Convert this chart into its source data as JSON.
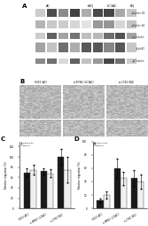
{
  "panel_c": {
    "title": "C",
    "groups": [
      "H353 (AC)",
      "si-MFN3 (LC3AC)",
      "si-1762 (BQ)"
    ],
    "black_vals": [
      70,
      72,
      100
    ],
    "white_vals": [
      75,
      68,
      75
    ],
    "black_err": [
      8,
      6,
      15
    ],
    "white_err": [
      10,
      8,
      25
    ],
    "black_label": "siglucin B3",
    "white_label": "si(winel)",
    "ylabel": "Relative migration (%)",
    "ylim": [
      0,
      130
    ]
  },
  "panel_d": {
    "title": "D",
    "groups": [
      "H353 (AC)",
      "si-MFN3 (LC3AC)",
      "si-1762 (BQ)"
    ],
    "black_vals": [
      12,
      60,
      45
    ],
    "white_vals": [
      20,
      45,
      40
    ],
    "black_err": [
      3,
      15,
      12
    ],
    "white_err": [
      5,
      10,
      10
    ],
    "black_label": "siGlukin B3",
    "white_label": "si(winel)",
    "ylabel": "Relative migration (%)",
    "ylim": [
      0,
      100
    ]
  },
  "bg_color": "#ffffff",
  "bar_black": "#1a1a1a",
  "bar_white": "#f0f0f0",
  "bar_edge": "#333333",
  "font_size": 3.5,
  "title_font_size": 5
}
